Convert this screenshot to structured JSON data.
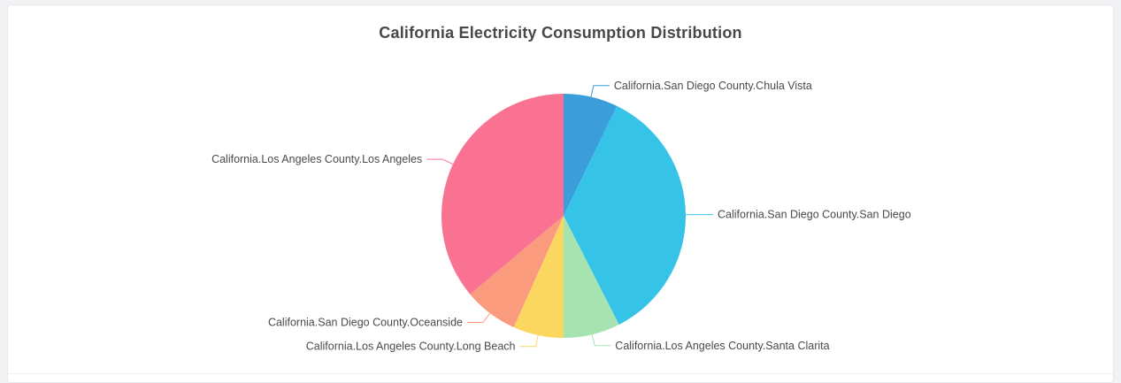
{
  "page": {
    "background_color": "#f1f2f4",
    "card_color": "#ffffff"
  },
  "chart_data": {
    "type": "pie",
    "title": "California Electricity Consumption Distribution",
    "legend_position": "none",
    "label_color": "#4a4a4a",
    "start_angle_deg": 0,
    "direction": "clockwise",
    "slices": [
      {
        "label": "California.San Diego County.Chula Vista",
        "value_pct": 7.2,
        "color": "#3B9EDB"
      },
      {
        "label": "California.San Diego County.San Diego",
        "value_pct": 35.3,
        "color": "#35C3E8"
      },
      {
        "label": "California.Los Angeles County.Santa Clarita",
        "value_pct": 7.5,
        "color": "#A5E3B0"
      },
      {
        "label": "California.Los Angeles County.Long Beach",
        "value_pct": 6.7,
        "color": "#FCD75F"
      },
      {
        "label": "California.San Diego County.Oceanside",
        "value_pct": 7.2,
        "color": "#FB9B7E"
      },
      {
        "label": "California.Los Angeles County.Los Angeles",
        "value_pct": 36.1,
        "color": "#F97291"
      }
    ]
  }
}
